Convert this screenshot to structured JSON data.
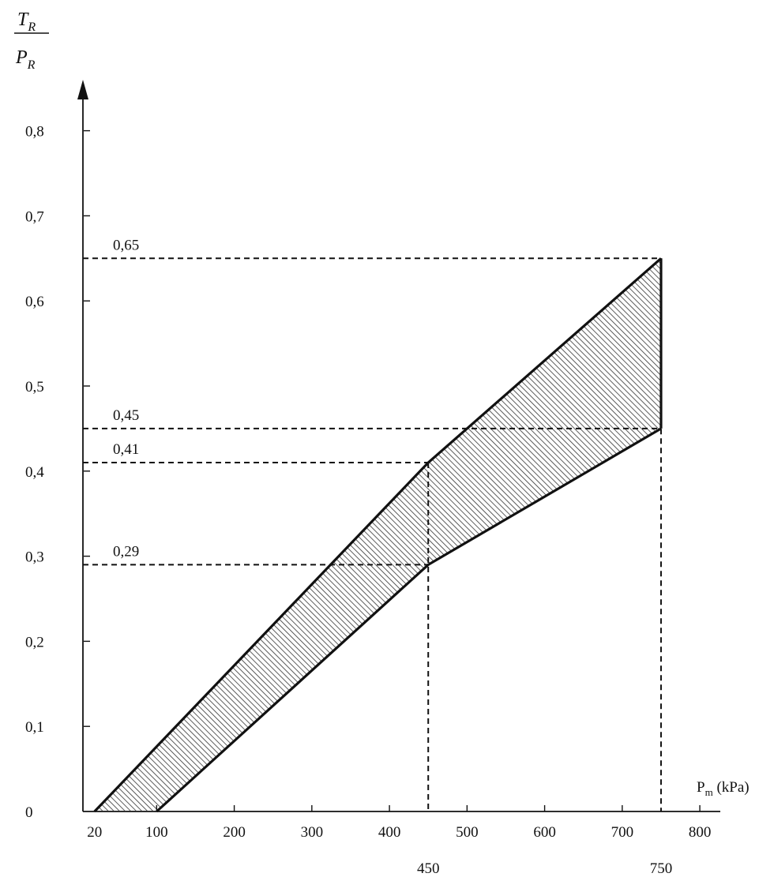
{
  "chart_data": {
    "type": "area",
    "ylabel": {
      "num_main": "T",
      "num_sub": "R",
      "den_main": "P",
      "den_sub": "R"
    },
    "xlabel": {
      "main": "P",
      "sub": "m",
      "unit": " (kPa)"
    },
    "xlim": [
      0,
      800
    ],
    "ylim": [
      0,
      0.9
    ],
    "x_ticks": [
      100,
      200,
      300,
      400,
      500,
      600,
      700,
      800
    ],
    "x_tick_labels": [
      "100",
      "200",
      "300",
      "400",
      "500",
      "600",
      "700",
      "800"
    ],
    "x_extra_label": "20",
    "y_ticks": [
      0,
      0.1,
      0.2,
      0.3,
      0.4,
      0.5,
      0.6,
      0.7,
      0.8
    ],
    "y_tick_labels": [
      "0",
      "0,1",
      "0,2",
      "0,3",
      "0,4",
      "0,5",
      "0,6",
      "0,7",
      "0,8"
    ],
    "upper_bound": [
      [
        20,
        0
      ],
      [
        450,
        0.41
      ],
      [
        750,
        0.65
      ]
    ],
    "lower_bound": [
      [
        100,
        0
      ],
      [
        450,
        0.29
      ],
      [
        750,
        0.45
      ]
    ],
    "reference_lines": {
      "horizontal": [
        {
          "y": 0.65,
          "label": "0,65",
          "x_end": 750
        },
        {
          "y": 0.45,
          "label": "0,45",
          "x_end": 750
        },
        {
          "y": 0.41,
          "label": "0,41",
          "x_end": 450
        },
        {
          "y": 0.29,
          "label": "0,29",
          "x_end": 450
        }
      ],
      "vertical": [
        {
          "x": 450,
          "label": "450",
          "y_top": 0.41
        },
        {
          "x": 750,
          "label": "750",
          "y_top": 0.65
        }
      ]
    },
    "fill_style": "hatched",
    "grid": false
  }
}
